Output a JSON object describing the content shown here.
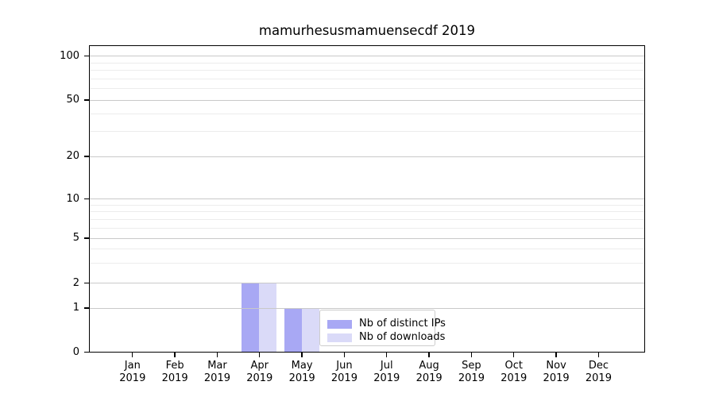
{
  "chart_data": {
    "type": "bar",
    "title": "mamurhesusmamuensecdf 2019",
    "x_year": "2019",
    "categories": [
      "Jan",
      "Feb",
      "Mar",
      "Apr",
      "May",
      "Jun",
      "Jul",
      "Aug",
      "Sep",
      "Oct",
      "Nov",
      "Dec"
    ],
    "series": [
      {
        "name": "Nb of distinct IPs",
        "color": "#a8a8f4",
        "values": [
          0,
          0,
          0,
          2,
          1,
          0,
          0,
          0,
          0,
          0,
          0,
          0
        ]
      },
      {
        "name": "Nb of downloads",
        "color": "#dadaf8",
        "values": [
          0,
          0,
          0,
          2,
          1,
          0,
          0,
          0,
          0,
          0,
          0,
          0
        ]
      }
    ],
    "y_axis": {
      "scale": "log-like-with-zero-baseline",
      "tick_labels": [
        "100",
        "50",
        "20",
        "10",
        "5",
        "2",
        "1",
        "0"
      ],
      "tick_values": [
        100,
        50,
        20,
        10,
        5,
        2,
        1,
        0
      ],
      "minor_gridline_values": [
        3,
        4,
        6,
        7,
        8,
        9,
        30,
        40,
        60,
        70,
        80,
        90
      ],
      "ylim": [
        0,
        120
      ]
    },
    "legend": {
      "entries": [
        "Nb of distinct IPs",
        "Nb of downloads"
      ]
    },
    "grid": "horizontal-major-and-minor",
    "colors": {
      "bar_distinct_ips": "#a8a8f4",
      "bar_downloads": "#dadaf8",
      "major_grid": "#c9c9c9",
      "minor_grid": "#ececec",
      "spine": "#000000",
      "legend_border": "#cccccc"
    }
  }
}
